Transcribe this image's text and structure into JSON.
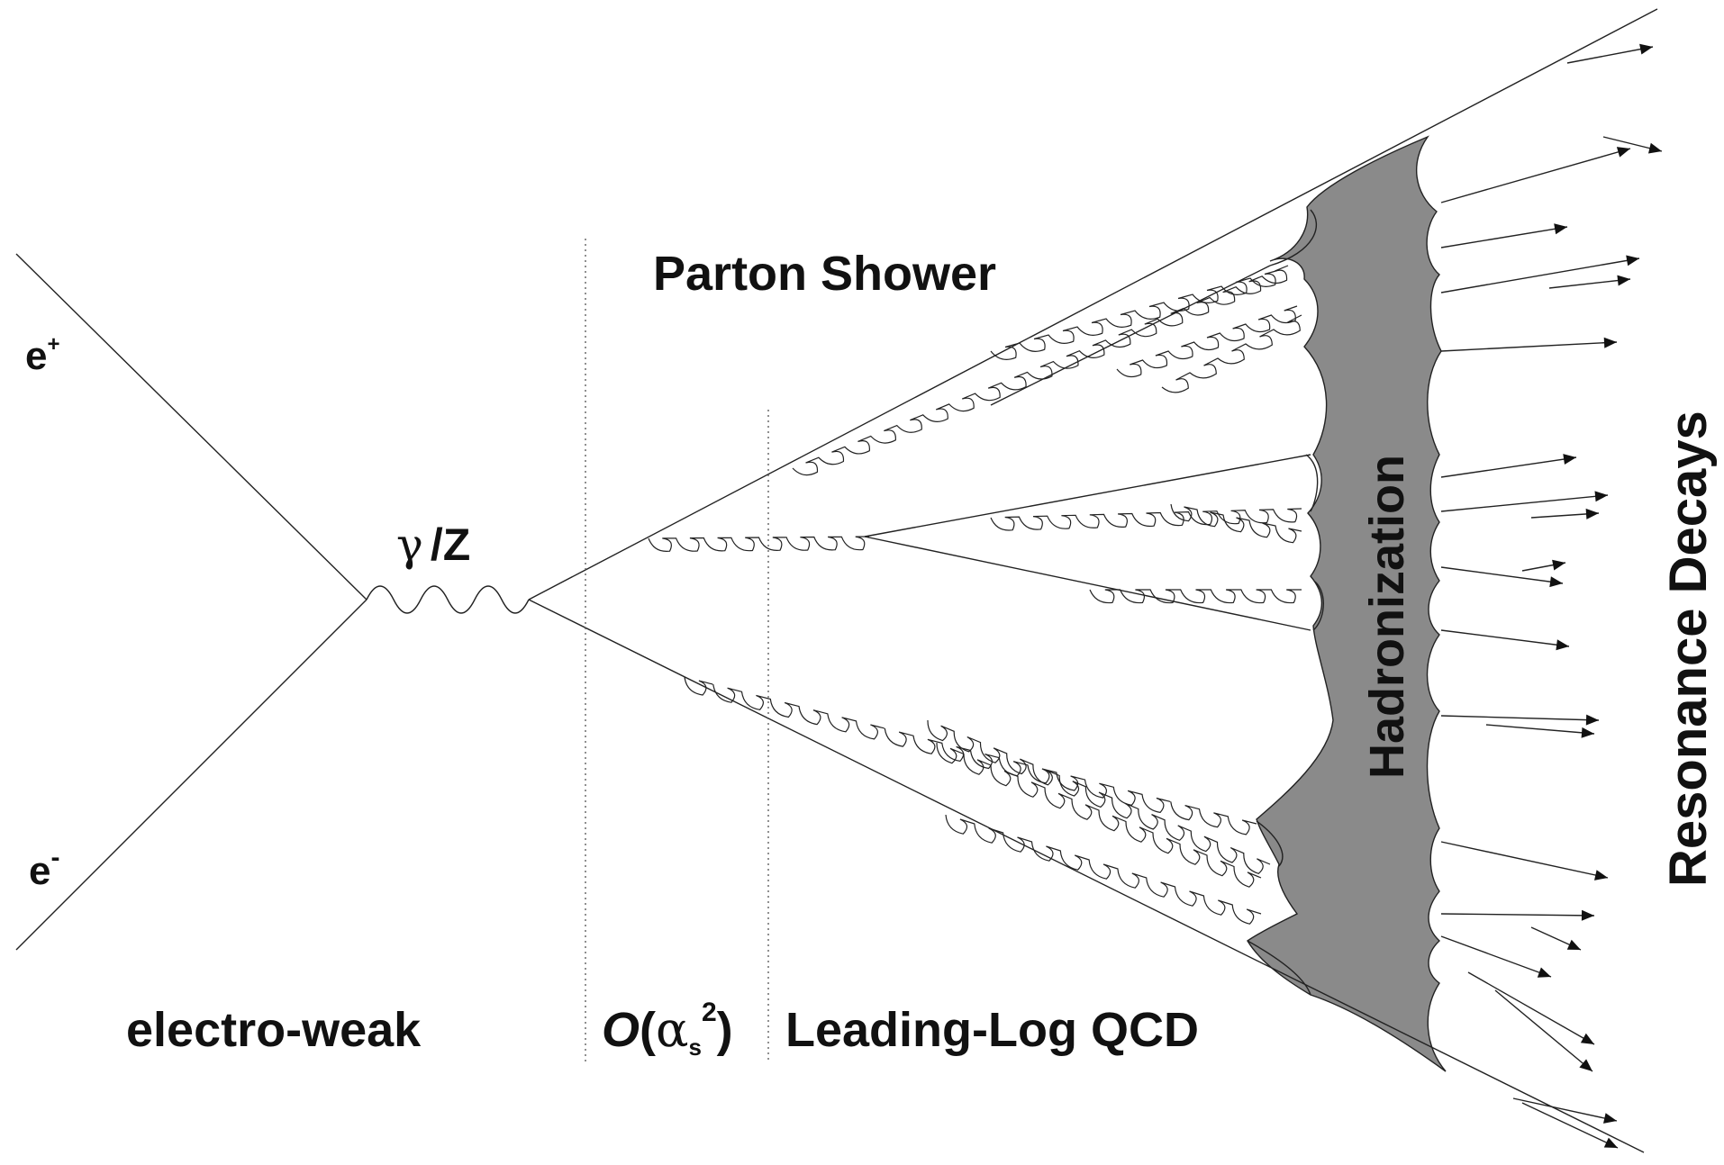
{
  "labels": {
    "e_plus_base": "e",
    "e_plus_sup": "+",
    "e_minus_base": "e",
    "e_minus_sup": "-",
    "boson_gamma": "γ",
    "boson_z": "/Z",
    "parton_shower": "Parton Shower",
    "electroweak": "electro-weak",
    "order_o": "O",
    "order_open": "(",
    "order_alpha": "α",
    "order_sub": "s",
    "order_sup": "2",
    "order_close": ")",
    "leading_log": "Leading-Log QCD",
    "hadronization": "Hadronization",
    "resonance_decays": "Resonance Decays"
  },
  "colors": {
    "line": "#222222",
    "hadronization_band": "#8a8a8a",
    "background": "#ffffff"
  }
}
